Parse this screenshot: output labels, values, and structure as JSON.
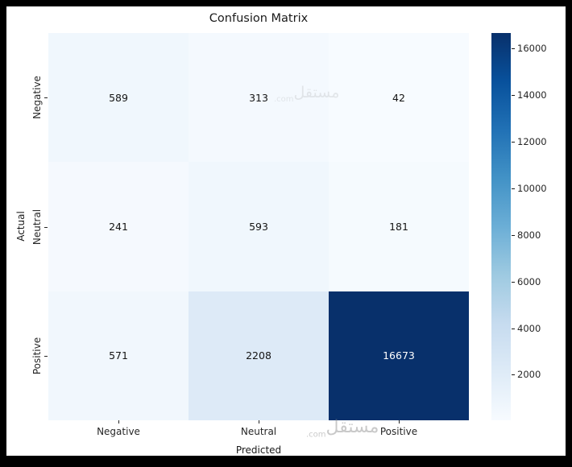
{
  "chart_data": {
    "type": "heatmap",
    "title": "Confusion Matrix",
    "xlabel": "Predicted",
    "ylabel": "Actual",
    "col_labels": [
      "Negative",
      "Neutral",
      "Positive"
    ],
    "row_labels": [
      "Negative",
      "Neutral",
      "Positive"
    ],
    "matrix": [
      [
        589,
        313,
        42
      ],
      [
        241,
        593,
        181
      ],
      [
        571,
        2208,
        16673
      ]
    ],
    "vmin": 42,
    "vmax": 16673,
    "colorbar_ticks": [
      2000,
      4000,
      6000,
      8000,
      10000,
      12000,
      14000,
      16000
    ],
    "colormap_name": "Blues",
    "colormap": [
      "#f7fbff",
      "#deebf7",
      "#c6dbef",
      "#9ecae1",
      "#6baed6",
      "#4292c6",
      "#2171b5",
      "#08519c",
      "#08306b"
    ],
    "legend_position": "right-colorbar",
    "grid": false
  },
  "watermark": {
    "text": "مستقل",
    "suffix": ".com"
  },
  "colors": {
    "frame_background": "#000000",
    "figure_background": "#ffffff",
    "title_text": "#1a1a1a",
    "tick_text": "#262626",
    "annotation_dark": "#141414",
    "annotation_light": "#ffffff"
  }
}
